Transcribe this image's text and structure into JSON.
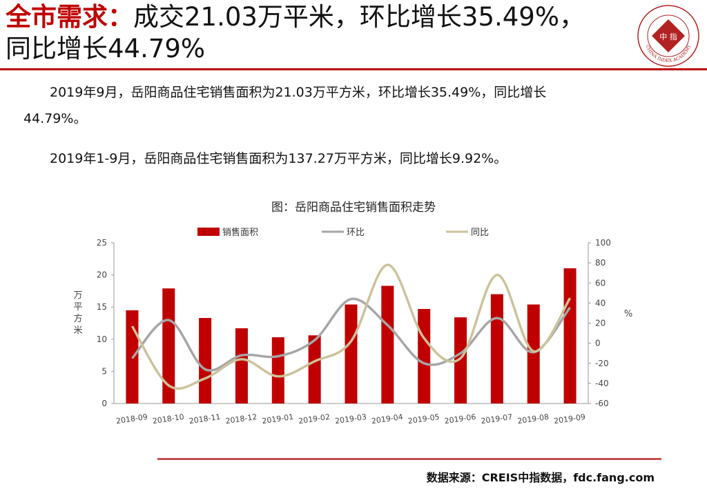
{
  "header": {
    "title_prefix": "全市需求：",
    "title_line1": "成交21.03万平米，环比增长35.49%，",
    "title_line2": "同比增长44.79%"
  },
  "logo": {
    "center_text": "中 指",
    "ring_text": "CHINA INDEX ACADEMY"
  },
  "body": {
    "para1_line1": "2019年9月，岳阳商品住宅销售面积为21.03万平方米，环比增长35.49%，同比增长",
    "para1_line2": "44.79%。",
    "para2": "2019年1-9月，岳阳商品住宅销售面积为137.27万平方米，同比增长9.92%。"
  },
  "chart_data": {
    "type": "bar",
    "title": "图：岳阳商品住宅销售面积走势",
    "ylabel": "万平方米",
    "y2label": "%",
    "ylim": [
      0,
      25
    ],
    "y2lim": [
      -60,
      100
    ],
    "yticks": [
      "0",
      "5",
      "10",
      "15",
      "20",
      "25"
    ],
    "y2ticks": [
      "-60",
      "-40",
      "-20",
      "0",
      "20",
      "40",
      "60",
      "80",
      "100"
    ],
    "legend_placement": "top",
    "grid": false,
    "categories": [
      "2018-09",
      "2018-10",
      "2018-11",
      "2018-12",
      "2019-01",
      "2019-02",
      "2019-03",
      "2019-04",
      "2019-05",
      "2019-06",
      "2019-07",
      "2019-08",
      "2019-09"
    ],
    "series": [
      {
        "name": "销售面积",
        "kind": "bar",
        "axis": "left",
        "color": "#c00000",
        "values": [
          14.5,
          17.9,
          13.3,
          11.7,
          10.3,
          10.6,
          15.4,
          18.3,
          14.7,
          13.4,
          17.0,
          15.4,
          21.03
        ]
      },
      {
        "name": "环比",
        "kind": "line",
        "axis": "right",
        "color": "#a6a6a6",
        "values": [
          -15,
          23,
          -26,
          -12,
          -13,
          3,
          44,
          18,
          -20,
          -10,
          25,
          -9,
          35.49
        ]
      },
      {
        "name": "同比",
        "kind": "line",
        "axis": "right",
        "color": "#ccc29c",
        "values": [
          17,
          -42,
          -35,
          -16,
          -33,
          -18,
          2,
          78,
          5,
          -15,
          68,
          -8,
          44.79
        ]
      }
    ]
  },
  "source": "数据来源：CREIS中指数据，fdc.fang.com"
}
